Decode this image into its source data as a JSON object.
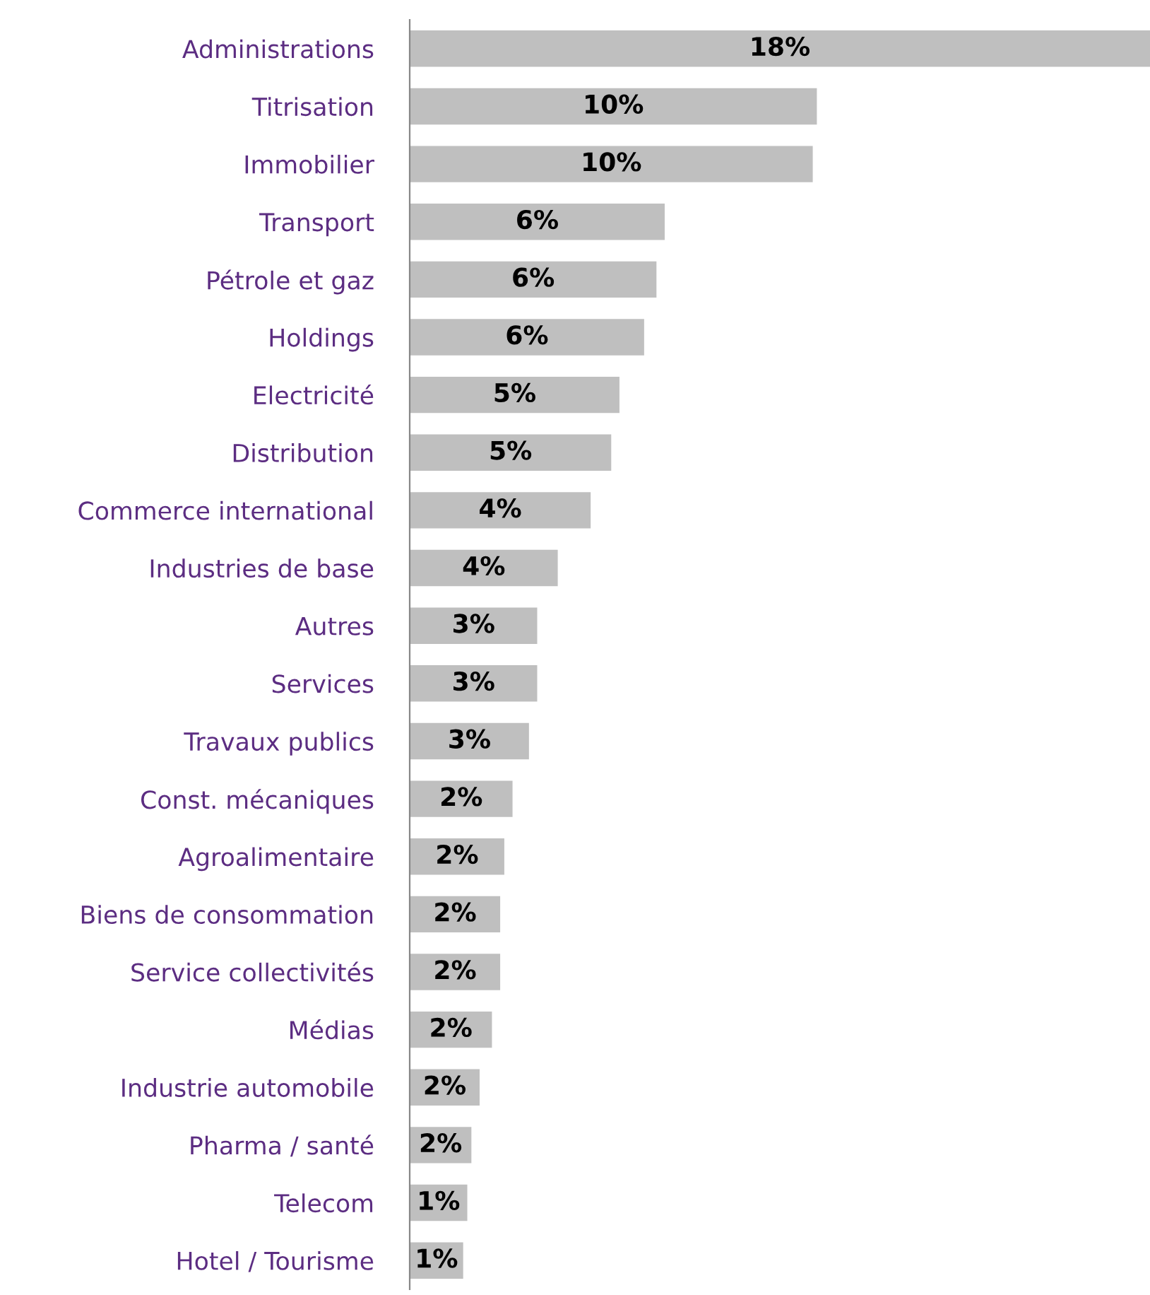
{
  "chart_data": {
    "type": "bar",
    "orientation": "horizontal",
    "categories": [
      "Administrations",
      "Titrisation",
      "Immobilier",
      "Transport",
      "Pétrole et gaz",
      "Holdings",
      "Electricité",
      "Distribution",
      "Commerce international",
      "Industries de base",
      "Autres",
      "Services",
      "Travaux publics",
      "Const. mécaniques",
      "Agroalimentaire",
      "Biens de consommation",
      "Service collectivités",
      "Médias",
      "Industrie automobile",
      "Pharma / santé",
      "Telecom",
      "Hotel / Tourisme"
    ],
    "values": [
      18.0,
      9.9,
      9.8,
      6.2,
      6.0,
      5.7,
      5.1,
      4.9,
      4.4,
      3.6,
      3.1,
      3.1,
      2.9,
      2.5,
      2.3,
      2.2,
      2.2,
      2.0,
      1.7,
      1.5,
      1.4,
      1.3
    ],
    "value_labels": [
      "18%",
      "10%",
      "10%",
      "6%",
      "6%",
      "6%",
      "5%",
      "5%",
      "4%",
      "4%",
      "3%",
      "3%",
      "3%",
      "2%",
      "2%",
      "2%",
      "2%",
      "2%",
      "2%",
      "2%",
      "1%",
      "1%"
    ],
    "color": "#bfbfbf",
    "grid": false,
    "legend": false,
    "tick_labels": "y"
  }
}
